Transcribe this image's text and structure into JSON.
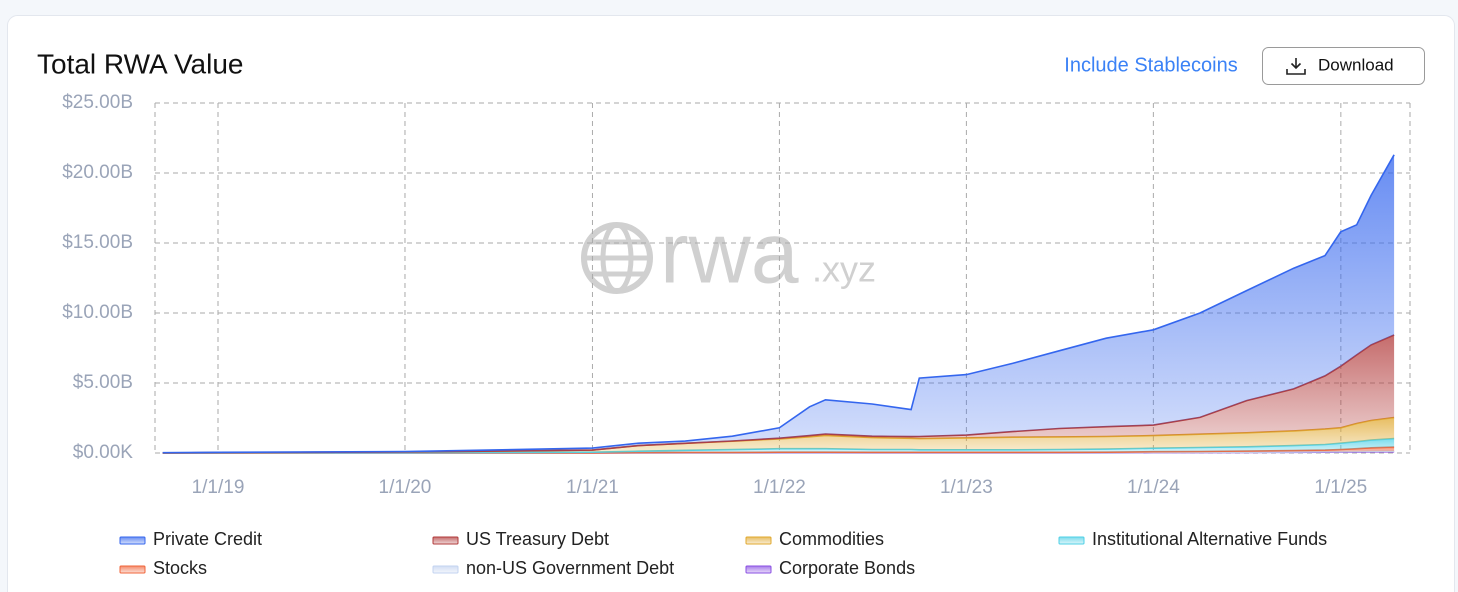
{
  "chart_data": {
    "type": "stacked-area",
    "title": "Total RWA Value",
    "watermark": [
      "rwa",
      ".xyz"
    ],
    "x": [
      "9/15/18",
      "1/1/19",
      "1/1/20",
      "1/1/21",
      "4/1/21",
      "7/1/21",
      "10/1/21",
      "1/1/22",
      "3/1/22",
      "4/1/22",
      "7/1/22",
      "9/15/22",
      "10/1/22",
      "1/1/23",
      "4/1/23",
      "7/1/23",
      "10/1/23",
      "1/1/24",
      "4/1/24",
      "7/1/24",
      "10/1/24",
      "12/1/24",
      "1/1/25",
      "2/1/25",
      "3/1/25",
      "4/15/25"
    ],
    "xlim": [
      "8/31/18",
      "5/16/25"
    ],
    "xticks": [
      "1/1/19",
      "1/1/20",
      "1/1/21",
      "1/1/22",
      "1/1/23",
      "1/1/24",
      "1/1/25"
    ],
    "ylim": [
      0,
      25
    ],
    "yticks": [
      {
        "value": 0,
        "label": "$0.00K"
      },
      {
        "value": 5,
        "label": "$5.00B"
      },
      {
        "value": 10,
        "label": "$10.00B"
      },
      {
        "value": 15,
        "label": "$15.00B"
      },
      {
        "value": 20,
        "label": "$20.00B"
      },
      {
        "value": 25,
        "label": "$25.00B"
      }
    ],
    "grid": true,
    "series": [
      {
        "name": "Private Credit",
        "color": "#3466ee",
        "values": [
          0.02,
          0.02,
          0.03,
          0.14,
          0.17,
          0.16,
          0.34,
          0.74,
          2.06,
          2.44,
          2.3,
          1.93,
          4.17,
          4.32,
          4.87,
          5.55,
          6.32,
          6.81,
          7.46,
          7.86,
          8.62,
          8.59,
          9.6,
          9.29,
          10.68,
          12.87
        ]
      },
      {
        "name": "US Treasury Debt",
        "color": "#b23b3b",
        "values": [
          0,
          0,
          0,
          0,
          0,
          0,
          0.02,
          0.05,
          0.08,
          0.1,
          0.1,
          0.12,
          0.15,
          0.2,
          0.4,
          0.6,
          0.7,
          0.75,
          1.2,
          2.3,
          3.0,
          3.8,
          4.4,
          4.9,
          5.4,
          5.9
        ]
      },
      {
        "name": "Commodities",
        "color": "#e0a82e",
        "values": [
          0,
          0.02,
          0.05,
          0.15,
          0.4,
          0.5,
          0.6,
          0.7,
          0.85,
          0.95,
          0.85,
          0.8,
          0.8,
          0.85,
          0.9,
          0.9,
          0.9,
          0.9,
          0.95,
          1.0,
          1.05,
          1.1,
          1.1,
          1.3,
          1.4,
          1.5
        ]
      },
      {
        "name": "Institutional Alternative Funds",
        "color": "#4fd0e6",
        "values": [
          0,
          0.01,
          0.02,
          0.05,
          0.1,
          0.15,
          0.2,
          0.25,
          0.25,
          0.25,
          0.2,
          0.2,
          0.18,
          0.18,
          0.18,
          0.2,
          0.22,
          0.25,
          0.28,
          0.3,
          0.35,
          0.4,
          0.45,
          0.5,
          0.55,
          0.6
        ]
      },
      {
        "name": "Stocks",
        "color": "#f0643a",
        "values": [
          0,
          0,
          0,
          0.01,
          0.02,
          0.03,
          0.03,
          0.04,
          0.04,
          0.04,
          0.03,
          0.03,
          0.03,
          0.03,
          0.03,
          0.03,
          0.04,
          0.05,
          0.06,
          0.08,
          0.1,
          0.12,
          0.15,
          0.2,
          0.25,
          0.3
        ]
      },
      {
        "name": "non-US Government Debt",
        "color": "#c3d3f0",
        "values": [
          0,
          0,
          0,
          0,
          0.01,
          0.01,
          0.01,
          0.02,
          0.02,
          0.02,
          0.02,
          0.02,
          0.02,
          0.02,
          0.02,
          0.02,
          0.02,
          0.02,
          0.02,
          0.02,
          0.03,
          0.03,
          0.03,
          0.03,
          0.03,
          0.03
        ]
      },
      {
        "name": "Corporate Bonds",
        "color": "#8a4fe3",
        "values": [
          0,
          0,
          0,
          0,
          0,
          0,
          0,
          0,
          0,
          0,
          0,
          0,
          0,
          0,
          0,
          0,
          0,
          0.02,
          0.03,
          0.04,
          0.05,
          0.06,
          0.07,
          0.08,
          0.09,
          0.1
        ]
      }
    ]
  },
  "controls": {
    "toggle": "Include Stablecoins",
    "download": "Download"
  }
}
